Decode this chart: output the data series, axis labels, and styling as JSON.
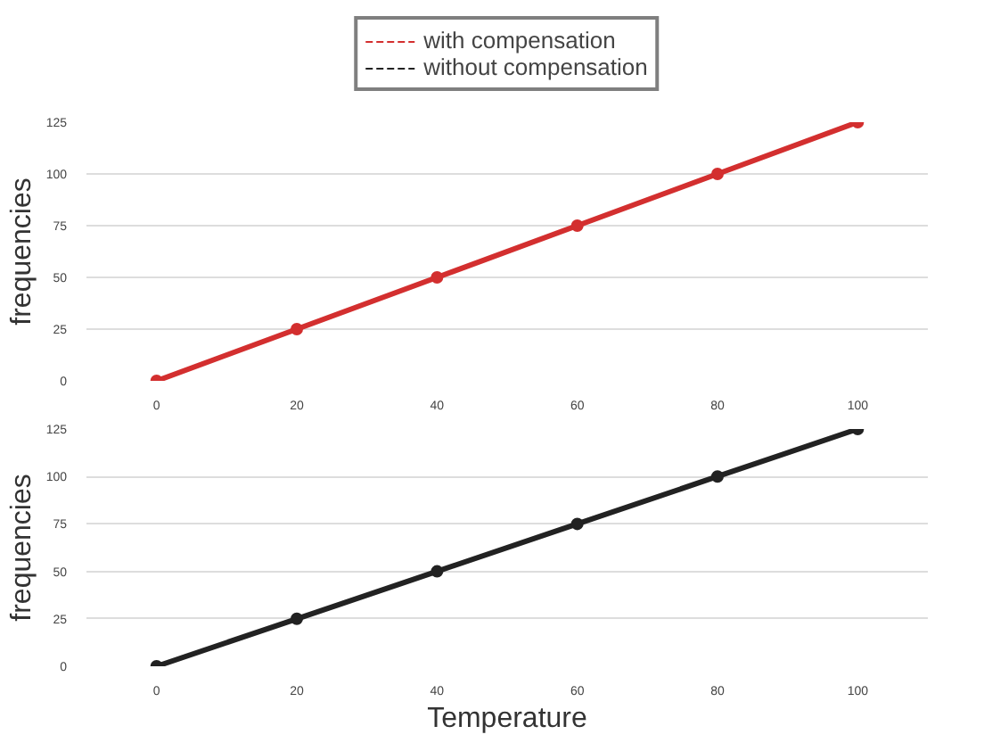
{
  "chart_data": [
    {
      "type": "line",
      "x": [
        0,
        20,
        40,
        60,
        80,
        100
      ],
      "ylabel": "frequencies",
      "xlim": [
        -10,
        110
      ],
      "ylim": [
        0,
        125
      ],
      "xticks": [
        0,
        20,
        40,
        60,
        80,
        100
      ],
      "yticks": [
        0,
        25,
        50,
        75,
        100,
        125
      ],
      "grid": "y",
      "marker": "circle",
      "legend": "top",
      "series": [
        {
          "name": "with compensation",
          "color": "#d32f2f",
          "values": [
            0,
            25,
            50,
            75,
            100,
            125
          ]
        }
      ]
    },
    {
      "type": "line",
      "x": [
        0,
        20,
        40,
        60,
        80,
        100
      ],
      "ylabel": "frequencies",
      "xlabel": "Temperature",
      "xlim": [
        -10,
        110
      ],
      "ylim": [
        0,
        125
      ],
      "xticks": [
        0,
        20,
        40,
        60,
        80,
        100
      ],
      "yticks": [
        0,
        25,
        50,
        75,
        100,
        125
      ],
      "grid": "y",
      "marker": "circle",
      "series": [
        {
          "name": "without compensation",
          "color": "#222222",
          "values": [
            0,
            25,
            50,
            75,
            100,
            125
          ]
        }
      ]
    }
  ]
}
